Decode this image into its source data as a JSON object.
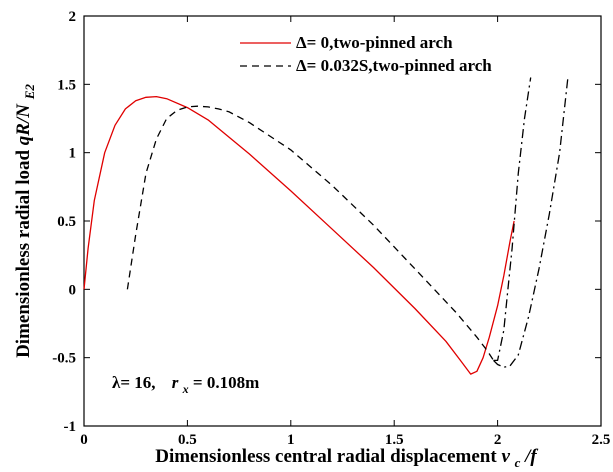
{
  "chart_data": {
    "type": "line",
    "xlabel_main": "Dimensionless central radial displacement ",
    "xlabel_var": "v",
    "xlabel_sub": "c",
    "xlabel_tail": "/f",
    "ylabel_main": "Dimensionless radial load ",
    "ylabel_var": "qR/N",
    "ylabel_sub": "E2",
    "xlim": [
      0,
      2.5
    ],
    "ylim": [
      -1,
      2
    ],
    "xticks": [
      0,
      0.5,
      1,
      1.5,
      2,
      2.5
    ],
    "xtick_labels": [
      "0",
      "0.5",
      "1",
      "1.5",
      "2",
      "2.5"
    ],
    "yticks": [
      -1,
      -0.5,
      0,
      0.5,
      1,
      1.5,
      2
    ],
    "ytick_labels": [
      "-1",
      "-0.5",
      "0",
      "0.5",
      "1",
      "1.5",
      "2"
    ],
    "legend_position": "top-right",
    "annotation": {
      "lambda_text": "λ= 16,",
      "r_var": "r",
      "r_sub": "x",
      "r_text": "= 0.108m"
    },
    "series": [
      {
        "name": "Δ= 0,two-pinned arch",
        "color": "#e00000",
        "style": "solid",
        "x": [
          0,
          0.02,
          0.05,
          0.1,
          0.15,
          0.2,
          0.25,
          0.3,
          0.35,
          0.4,
          0.5,
          0.6,
          0.8,
          1.0,
          1.2,
          1.4,
          1.6,
          1.75,
          1.82,
          1.87,
          1.9,
          1.93,
          1.96,
          2.0,
          2.03,
          2.06,
          2.08
        ],
        "y": [
          0,
          0.3,
          0.65,
          1.0,
          1.2,
          1.32,
          1.38,
          1.405,
          1.41,
          1.395,
          1.33,
          1.24,
          0.99,
          0.72,
          0.44,
          0.16,
          -0.14,
          -0.38,
          -0.52,
          -0.62,
          -0.6,
          -0.5,
          -0.35,
          -0.12,
          0.1,
          0.35,
          0.5
        ]
      },
      {
        "name": "Δ= 0.032S,two-pinned arch",
        "color": "#000000",
        "style": "dash",
        "x": [
          0.21,
          0.25,
          0.3,
          0.35,
          0.4,
          0.45,
          0.5,
          0.55,
          0.6,
          0.65,
          0.7,
          0.8,
          1.0,
          1.2,
          1.4,
          1.6,
          1.8,
          1.9,
          1.95,
          1.98
        ],
        "y": [
          0,
          0.4,
          0.85,
          1.1,
          1.25,
          1.31,
          1.335,
          1.34,
          1.335,
          1.32,
          1.3,
          1.22,
          1.02,
          0.76,
          0.47,
          0.15,
          -0.17,
          -0.35,
          -0.45,
          -0.52
        ]
      },
      {
        "name": "",
        "color": "#000000",
        "style": "dashdot",
        "x": [
          1.98,
          2.0,
          2.03,
          2.05,
          2.07,
          2.1,
          2.13,
          2.16
        ],
        "y": [
          -0.52,
          -0.52,
          -0.3,
          0.0,
          0.3,
          0.85,
          1.25,
          1.55
        ]
      },
      {
        "name": "",
        "color": "#000000",
        "style": "dashdot",
        "x": [
          1.98,
          2.0,
          2.03,
          2.06,
          2.1,
          2.15,
          2.2,
          2.25,
          2.3,
          2.34
        ],
        "y": [
          -0.52,
          -0.55,
          -0.57,
          -0.56,
          -0.48,
          -0.2,
          0.15,
          0.55,
          1.0,
          1.55
        ]
      }
    ]
  }
}
